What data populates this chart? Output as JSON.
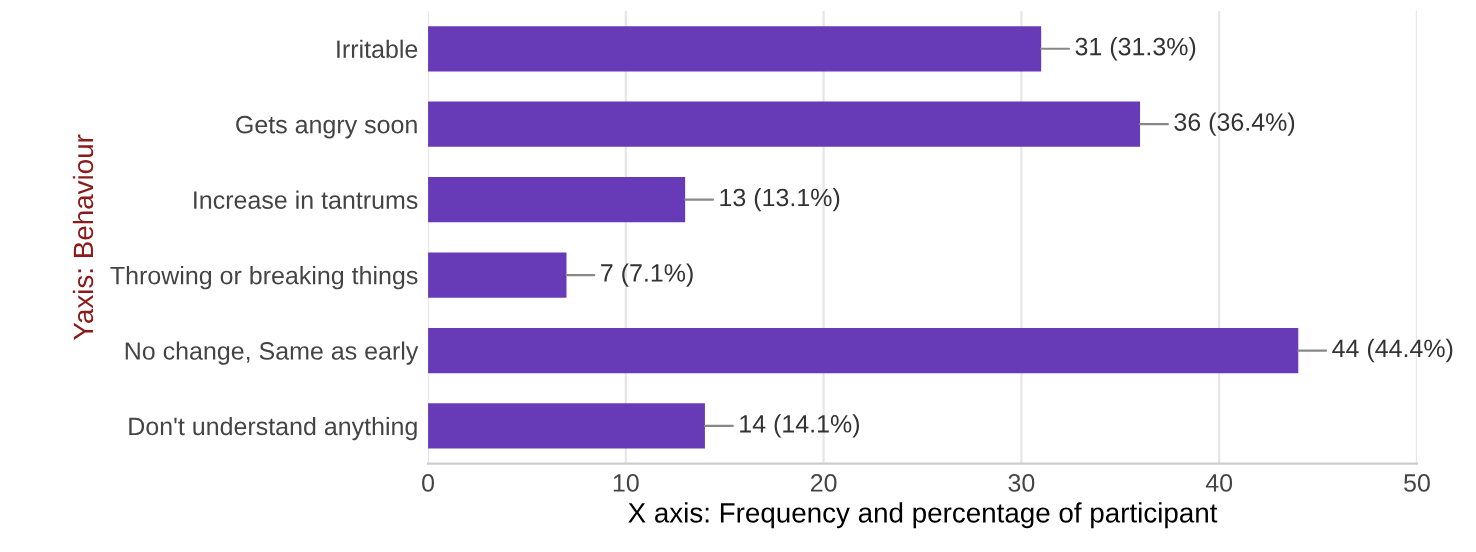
{
  "chart_data": {
    "type": "bar",
    "orientation": "horizontal",
    "xlabel": "X axis: Frequency and percentage of participant",
    "ylabel": "Yaxis: Behaviour",
    "categories": [
      "Irritable",
      "Gets angry soon",
      "Increase in tantrums",
      "Throwing or breaking things",
      "No change, Same as early",
      "Don't understand anything"
    ],
    "values": [
      31,
      36,
      13,
      7,
      44,
      14
    ],
    "value_labels": [
      "31 (31.3%)",
      "36 (36.4%)",
      "13 (13.1%)",
      "7 (7.1%)",
      "44 (44.4%)",
      "14 (14.1%)"
    ],
    "color": "#673ab7",
    "xlim": [
      0,
      50
    ],
    "xticks": [
      0,
      10,
      20,
      30,
      40,
      50
    ],
    "grid": "x"
  }
}
